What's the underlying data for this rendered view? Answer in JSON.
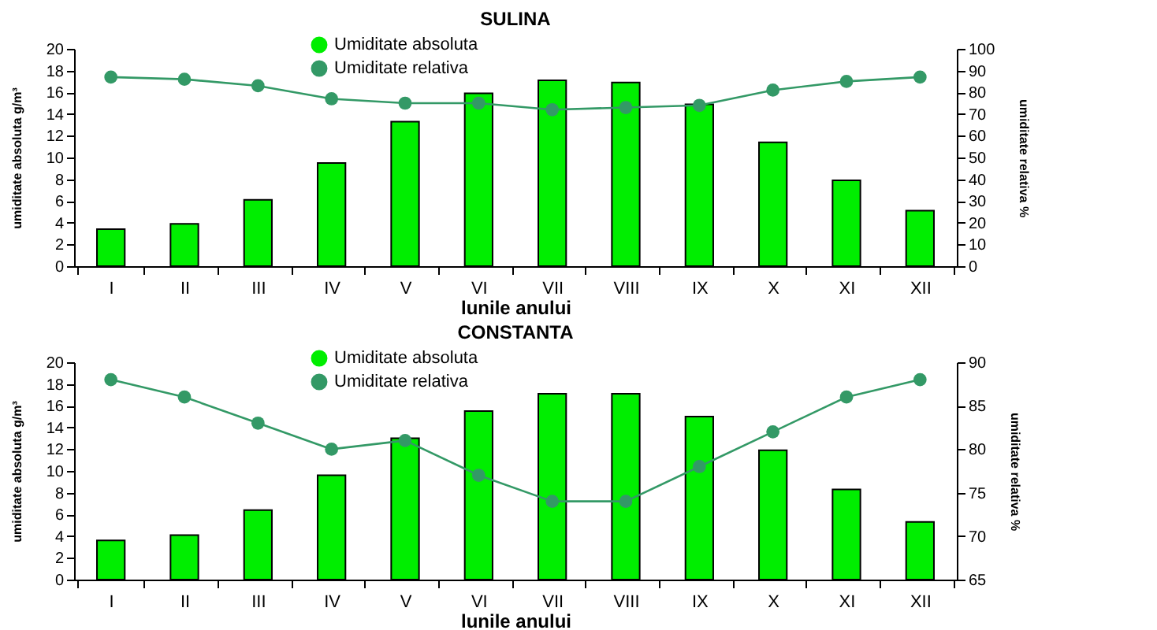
{
  "chart_data": [
    {
      "type": "bar",
      "title": "SULINA",
      "xlabel": "lunile anului",
      "ylabel": "umiditate absoluta g/m³",
      "y2label": "umiditate relativa %",
      "categories": [
        "I",
        "II",
        "III",
        "IV",
        "V",
        "VI",
        "VII",
        "VIII",
        "IX",
        "X",
        "XI",
        "XII"
      ],
      "series": [
        {
          "name": "Umiditate absoluta",
          "type": "bar",
          "color": "#00ee00",
          "values": [
            3.4,
            3.9,
            6.1,
            9.5,
            13.3,
            15.9,
            17.1,
            16.9,
            14.9,
            11.4,
            7.9,
            5.1
          ]
        },
        {
          "name": "Umiditate relativa",
          "type": "line",
          "axis": "y2",
          "color": "#339966",
          "values": [
            87,
            86,
            83,
            77,
            75,
            75,
            72,
            73,
            74,
            81,
            85,
            87
          ]
        }
      ],
      "ylim": [
        0,
        20
      ],
      "yticks": [
        0,
        2,
        4,
        6,
        8,
        10,
        12,
        14,
        16,
        18,
        20
      ],
      "y2lim": [
        0,
        100
      ],
      "y2ticks": [
        0,
        10,
        20,
        30,
        40,
        50,
        60,
        70,
        80,
        90,
        100
      ],
      "legend": "top",
      "marker": "circle"
    },
    {
      "type": "bar",
      "title": "CONSTANTA",
      "xlabel": "lunile anului",
      "ylabel": "umiditate absoluta g/m³",
      "y2label": "umiditate relativa %",
      "categories": [
        "I",
        "II",
        "III",
        "IV",
        "V",
        "VI",
        "VII",
        "VIII",
        "IX",
        "X",
        "XI",
        "XII"
      ],
      "series": [
        {
          "name": "Umiditate absoluta",
          "type": "bar",
          "color": "#00ee00",
          "values": [
            3.6,
            4.1,
            6.4,
            9.6,
            13,
            15.5,
            17.1,
            17.1,
            15,
            11.9,
            8.3,
            5.3
          ]
        },
        {
          "name": "Umiditate relativa",
          "type": "line",
          "axis": "y2",
          "color": "#339966",
          "values": [
            88,
            86,
            83,
            80,
            81,
            77,
            74,
            74,
            78,
            82,
            86,
            88
          ]
        }
      ],
      "ylim": [
        0,
        20
      ],
      "yticks": [
        0,
        2,
        4,
        6,
        8,
        10,
        12,
        14,
        16,
        18,
        20
      ],
      "y2lim": [
        65,
        90
      ],
      "y2ticks": [
        65,
        70,
        75,
        80,
        85,
        90
      ],
      "legend": "top",
      "marker": "circle"
    }
  ]
}
